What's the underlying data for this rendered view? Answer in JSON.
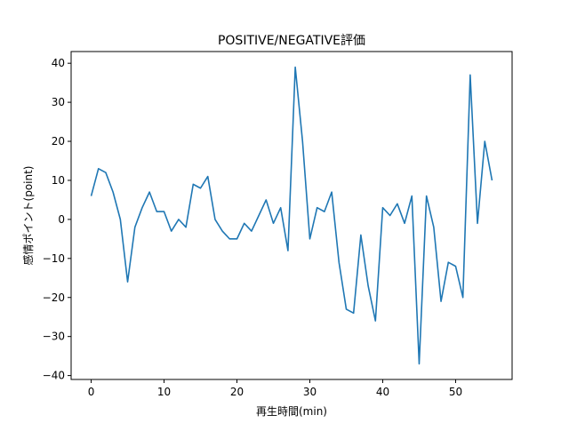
{
  "chart_data": {
    "type": "line",
    "title": "POSITIVE/NEGATIVE評価",
    "xlabel": "再生時間(min)",
    "ylabel": "感情ポイント(point)",
    "xlim": [
      -2.75,
      57.75
    ],
    "ylim": [
      -41,
      43
    ],
    "xticks": [
      0,
      10,
      20,
      30,
      40,
      50
    ],
    "xtick_labels": [
      "0",
      "10",
      "20",
      "30",
      "40",
      "50"
    ],
    "yticks": [
      -40,
      -30,
      -20,
      -10,
      0,
      10,
      20,
      30,
      40
    ],
    "ytick_labels": [
      "−40",
      "−30",
      "−20",
      "−10",
      "0",
      "10",
      "20",
      "30",
      "40"
    ],
    "grid": false,
    "series": [
      {
        "color": "#1f77b4",
        "x": [
          0,
          1,
          2,
          3,
          4,
          5,
          6,
          7,
          8,
          9,
          10,
          11,
          12,
          13,
          14,
          15,
          16,
          17,
          18,
          19,
          20,
          21,
          22,
          23,
          24,
          25,
          26,
          27,
          28,
          29,
          30,
          31,
          32,
          33,
          34,
          35,
          36,
          37,
          38,
          39,
          40,
          41,
          42,
          43,
          44,
          45,
          46,
          47,
          48,
          49,
          50,
          51,
          52,
          53,
          54,
          55
        ],
        "y": [
          6,
          13,
          12,
          7,
          0,
          -16,
          -2,
          3,
          7,
          2,
          2,
          -3,
          0,
          -2,
          9,
          8,
          11,
          0,
          -3,
          -5,
          -5,
          -1,
          -3,
          1,
          5,
          -1,
          3,
          -8,
          39,
          20,
          -5,
          3,
          2,
          7,
          -11,
          -23,
          -24,
          -4,
          -17,
          -26,
          3,
          1,
          4,
          -1,
          6,
          -37,
          6,
          -2,
          -21,
          -11,
          -12,
          -20,
          37,
          -1,
          20,
          10
        ]
      }
    ]
  }
}
